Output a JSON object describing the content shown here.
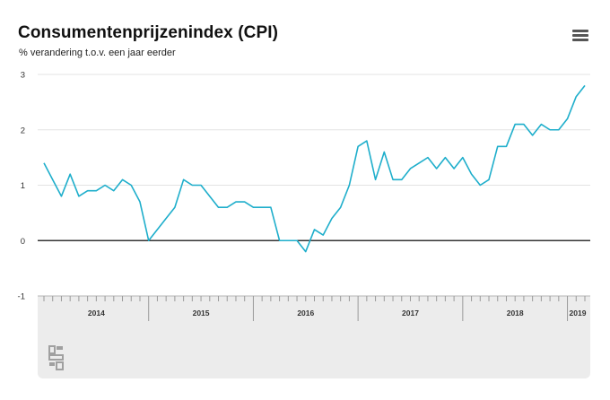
{
  "header": {
    "title": "Consumentenprijzenindex (CPI)",
    "subtitle": "% verandering t.o.v. een jaar eerder",
    "menu_icon": "hamburger-menu-icon"
  },
  "chart_data": {
    "type": "line",
    "title": "Consumentenprijzenindex (CPI)",
    "subtitle": "% verandering t.o.v. een jaar eerder",
    "xlabel": "",
    "ylabel": "",
    "ylim": [
      -1,
      3
    ],
    "yticks": [
      "3",
      "2",
      "1",
      "0",
      "-1"
    ],
    "grid": true,
    "line_color": "#1eaecb",
    "x_start": "2014-01",
    "x_end": "2019-03",
    "year_labels": [
      "2014",
      "2015",
      "2016",
      "2017",
      "2018",
      "2019"
    ],
    "series": [
      {
        "values": [
          1.4,
          1.1,
          0.8,
          1.2,
          0.8,
          0.9,
          0.9,
          1.0,
          0.9,
          1.1,
          1.0,
          0.7,
          0.0,
          0.2,
          0.4,
          0.6,
          1.1,
          1.0,
          1.0,
          0.8,
          0.6,
          0.6,
          0.7,
          0.7,
          0.6,
          0.6,
          0.6,
          0.0,
          0.0,
          0.0,
          -0.2,
          0.2,
          0.1,
          0.4,
          0.6,
          1.0,
          1.7,
          1.8,
          1.1,
          1.6,
          1.1,
          1.1,
          1.3,
          1.4,
          1.5,
          1.3,
          1.5,
          1.3,
          1.5,
          1.2,
          1.0,
          1.1,
          1.7,
          1.7,
          2.1,
          2.1,
          1.9,
          2.1,
          2.0,
          2.0,
          2.2,
          2.6,
          2.8
        ]
      }
    ]
  },
  "navigator": {
    "year_labels": [
      "2014",
      "2015",
      "2016",
      "2017",
      "2018",
      "2019"
    ]
  },
  "logo": {
    "icon": "cbs-logo-icon",
    "color": "#a0a0a0"
  }
}
